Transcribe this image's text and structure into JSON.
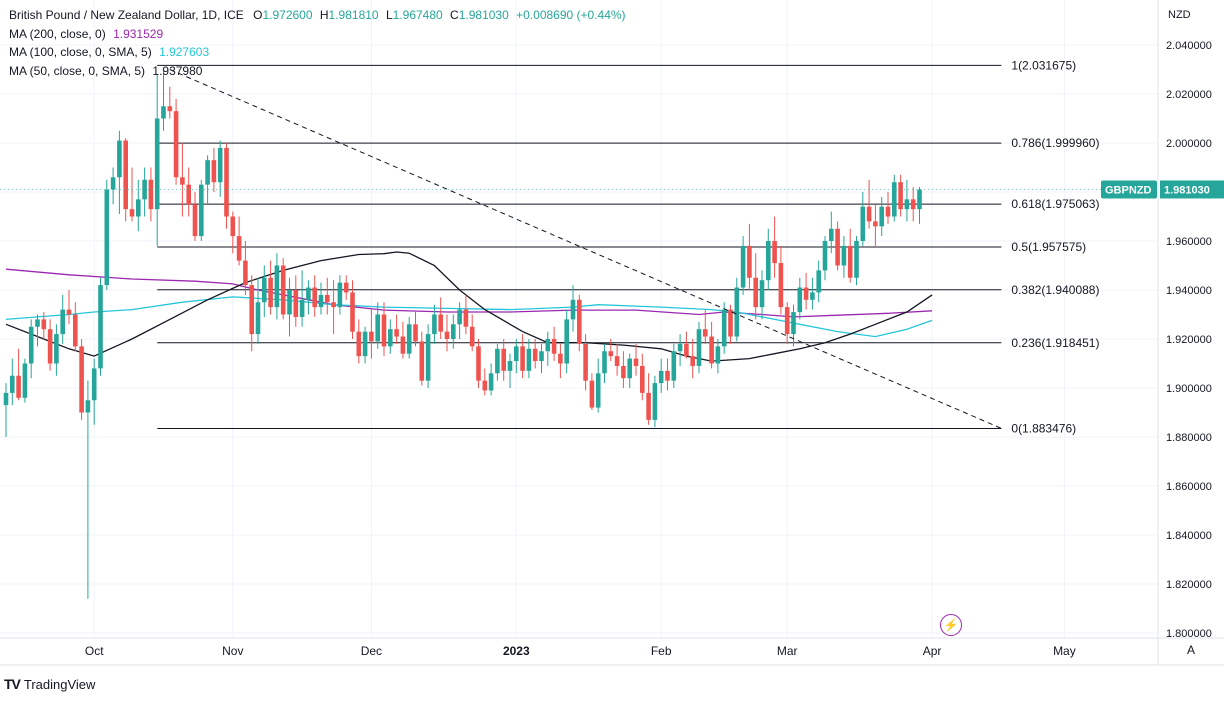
{
  "header": {
    "symbol_title": "British Pound / New Zealand Dollar, 1D, ICE",
    "ohlc": [
      {
        "label": "O",
        "value": "1.972600"
      },
      {
        "label": "H",
        "value": "1.981810"
      },
      {
        "label": "L",
        "value": "1.967480"
      },
      {
        "label": "C",
        "value": "1.981030"
      }
    ],
    "change": "+0.008690 (+0.44%)",
    "indicators": [
      {
        "label": "MA (200, close, 0)",
        "value": "1.931529",
        "color": "#9c27b0"
      },
      {
        "label": "MA (100, close, 0, SMA, 5)",
        "value": "1.927603",
        "color": "#26c6da"
      },
      {
        "label": "MA (50, close, 0, SMA, 5)",
        "value": "1.937980",
        "color": "#131722"
      }
    ]
  },
  "currency_label": "NZD",
  "price_tag": {
    "symbol": "GBPNZD",
    "value": "1.981030",
    "color": "#26a69a"
  },
  "brand": {
    "logo": "TV",
    "name": "TradingView"
  },
  "auto_label": "A",
  "chart_data": {
    "type": "candlestick",
    "y_axis": {
      "min": 1.795,
      "max": 2.05,
      "ticks": [
        "2.040000",
        "2.020000",
        "2.000000",
        "1.980000",
        "1.960000",
        "1.940000",
        "1.920000",
        "1.900000",
        "1.880000",
        "1.860000",
        "1.840000",
        "1.820000",
        "1.800000"
      ]
    },
    "x_axis": {
      "labels": [
        {
          "text": "Oct",
          "bar": 14,
          "bold": false
        },
        {
          "text": "Nov",
          "bar": 36,
          "bold": false
        },
        {
          "text": "Dec",
          "bar": 58,
          "bold": false
        },
        {
          "text": "2023",
          "bar": 81,
          "bold": true
        },
        {
          "text": "Feb",
          "bar": 104,
          "bold": false
        },
        {
          "text": "Mar",
          "bar": 124,
          "bold": false
        },
        {
          "text": "Apr",
          "bar": 147,
          "bold": false
        },
        {
          "text": "May",
          "bar": 168,
          "bold": false
        }
      ]
    },
    "colors": {
      "up": "#26a69a",
      "down": "#ef5350"
    },
    "candles": [
      [
        1.893,
        1.902,
        1.88,
        1.898
      ],
      [
        1.898,
        1.912,
        1.893,
        1.905
      ],
      [
        1.905,
        1.916,
        1.895,
        1.896
      ],
      [
        1.896,
        1.912,
        1.894,
        1.91
      ],
      [
        1.91,
        1.928,
        1.904,
        1.925
      ],
      [
        1.925,
        1.93,
        1.917,
        1.928
      ],
      [
        1.928,
        1.931,
        1.92,
        1.924
      ],
      [
        1.924,
        1.928,
        1.907,
        1.91
      ],
      [
        1.91,
        1.926,
        1.905,
        1.922
      ],
      [
        1.922,
        1.938,
        1.918,
        1.932
      ],
      [
        1.932,
        1.94,
        1.926,
        1.93
      ],
      [
        1.93,
        1.935,
        1.915,
        1.917
      ],
      [
        1.917,
        1.92,
        1.887,
        1.89
      ],
      [
        1.89,
        1.903,
        1.814,
        1.895
      ],
      [
        1.895,
        1.912,
        1.885,
        1.908
      ],
      [
        1.908,
        1.945,
        1.905,
        1.942
      ],
      [
        1.942,
        1.985,
        1.94,
        1.981
      ],
      [
        1.981,
        1.99,
        1.975,
        1.986
      ],
      [
        1.986,
        2.005,
        1.971,
        2.001
      ],
      [
        2.001,
        2.002,
        1.968,
        1.973
      ],
      [
        1.973,
        1.99,
        1.968,
        1.97
      ],
      [
        1.97,
        1.985,
        1.964,
        1.977
      ],
      [
        1.977,
        1.99,
        1.97,
        1.985
      ],
      [
        1.985,
        1.99,
        1.968,
        1.973
      ],
      [
        1.973,
        2.028,
        1.958,
        2.01
      ],
      [
        2.01,
        2.03,
        2.005,
        2.015
      ],
      [
        2.015,
        2.023,
        2.01,
        2.013
      ],
      [
        2.013,
        2.018,
        1.983,
        1.986
      ],
      [
        1.986,
        2.0,
        1.97,
        1.983
      ],
      [
        1.983,
        1.99,
        1.97,
        1.975
      ],
      [
        1.975,
        1.98,
        1.96,
        1.962
      ],
      [
        1.962,
        1.985,
        1.96,
        1.983
      ],
      [
        1.983,
        1.995,
        1.975,
        1.993
      ],
      [
        1.993,
        1.998,
        1.98,
        1.984
      ],
      [
        1.984,
        2.001,
        1.978,
        1.998
      ],
      [
        1.998,
        2.0,
        1.965,
        1.97
      ],
      [
        1.97,
        1.972,
        1.955,
        1.962
      ],
      [
        1.962,
        1.97,
        1.95,
        1.952
      ],
      [
        1.952,
        1.96,
        1.938,
        1.942
      ],
      [
        1.942,
        1.946,
        1.915,
        1.922
      ],
      [
        1.922,
        1.945,
        1.918,
        1.935
      ],
      [
        1.935,
        1.95,
        1.929,
        1.945
      ],
      [
        1.945,
        1.952,
        1.93,
        1.933
      ],
      [
        1.933,
        1.955,
        1.928,
        1.95
      ],
      [
        1.95,
        1.953,
        1.928,
        1.93
      ],
      [
        1.93,
        1.945,
        1.921,
        1.94
      ],
      [
        1.94,
        1.946,
        1.925,
        1.929
      ],
      [
        1.929,
        1.948,
        1.925,
        1.936
      ],
      [
        1.936,
        1.944,
        1.93,
        1.941
      ],
      [
        1.941,
        1.946,
        1.929,
        1.933
      ],
      [
        1.933,
        1.943,
        1.93,
        1.938
      ],
      [
        1.938,
        1.945,
        1.93,
        1.935
      ],
      [
        1.935,
        1.944,
        1.922,
        1.933
      ],
      [
        1.933,
        1.946,
        1.93,
        1.943
      ],
      [
        1.943,
        1.946,
        1.936,
        1.939
      ],
      [
        1.939,
        1.944,
        1.92,
        1.923
      ],
      [
        1.923,
        1.928,
        1.91,
        1.913
      ],
      [
        1.913,
        1.925,
        1.91,
        1.923
      ],
      [
        1.923,
        1.932,
        1.912,
        1.919
      ],
      [
        1.919,
        1.935,
        1.916,
        1.93
      ],
      [
        1.93,
        1.935,
        1.913,
        1.917
      ],
      [
        1.917,
        1.928,
        1.914,
        1.924
      ],
      [
        1.924,
        1.93,
        1.918,
        1.921
      ],
      [
        1.921,
        1.927,
        1.912,
        1.914
      ],
      [
        1.914,
        1.929,
        1.912,
        1.926
      ],
      [
        1.926,
        1.931,
        1.917,
        1.919
      ],
      [
        1.919,
        1.923,
        1.901,
        1.903
      ],
      [
        1.903,
        1.926,
        1.9,
        1.922
      ],
      [
        1.922,
        1.934,
        1.918,
        1.93
      ],
      [
        1.93,
        1.937,
        1.92,
        1.923
      ],
      [
        1.923,
        1.93,
        1.915,
        1.92
      ],
      [
        1.92,
        1.93,
        1.916,
        1.926
      ],
      [
        1.926,
        1.935,
        1.92,
        1.932
      ],
      [
        1.932,
        1.938,
        1.922,
        1.925
      ],
      [
        1.925,
        1.93,
        1.915,
        1.917
      ],
      [
        1.917,
        1.92,
        1.9,
        1.903
      ],
      [
        1.903,
        1.908,
        1.897,
        1.899
      ],
      [
        1.899,
        1.91,
        1.897,
        1.906
      ],
      [
        1.906,
        1.918,
        1.903,
        1.916
      ],
      [
        1.916,
        1.92,
        1.903,
        1.907
      ],
      [
        1.907,
        1.914,
        1.9,
        1.911
      ],
      [
        1.911,
        1.92,
        1.906,
        1.917
      ],
      [
        1.917,
        1.922,
        1.904,
        1.907
      ],
      [
        1.907,
        1.92,
        1.904,
        1.916
      ],
      [
        1.916,
        1.92,
        1.908,
        1.911
      ],
      [
        1.911,
        1.918,
        1.906,
        1.915
      ],
      [
        1.915,
        1.923,
        1.909,
        1.92
      ],
      [
        1.92,
        1.925,
        1.911,
        1.914
      ],
      [
        1.914,
        1.918,
        1.904,
        1.91
      ],
      [
        1.91,
        1.932,
        1.906,
        1.928
      ],
      [
        1.928,
        1.942,
        1.923,
        1.936
      ],
      [
        1.936,
        1.938,
        1.915,
        1.918
      ],
      [
        1.918,
        1.922,
        1.899,
        1.903
      ],
      [
        1.903,
        1.906,
        1.891,
        1.892
      ],
      [
        1.892,
        1.912,
        1.89,
        1.906
      ],
      [
        1.906,
        1.918,
        1.902,
        1.915
      ],
      [
        1.915,
        1.92,
        1.911,
        1.913
      ],
      [
        1.913,
        1.918,
        1.905,
        1.909
      ],
      [
        1.909,
        1.915,
        1.9,
        1.904
      ],
      [
        1.904,
        1.914,
        1.9,
        1.912
      ],
      [
        1.912,
        1.918,
        1.905,
        1.909
      ],
      [
        1.909,
        1.914,
        1.895,
        1.898
      ],
      [
        1.898,
        1.906,
        1.885,
        1.887
      ],
      [
        1.887,
        1.905,
        1.884,
        1.902
      ],
      [
        1.902,
        1.912,
        1.898,
        1.907
      ],
      [
        1.907,
        1.912,
        1.899,
        1.903
      ],
      [
        1.903,
        1.918,
        1.9,
        1.915
      ],
      [
        1.915,
        1.922,
        1.909,
        1.918
      ],
      [
        1.918,
        1.923,
        1.912,
        1.913
      ],
      [
        1.913,
        1.92,
        1.904,
        1.909
      ],
      [
        1.909,
        1.927,
        1.906,
        1.924
      ],
      [
        1.924,
        1.932,
        1.918,
        1.921
      ],
      [
        1.921,
        1.927,
        1.908,
        1.91
      ],
      [
        1.91,
        1.92,
        1.906,
        1.917
      ],
      [
        1.917,
        1.935,
        1.914,
        1.932
      ],
      [
        1.932,
        1.934,
        1.918,
        1.921
      ],
      [
        1.921,
        1.945,
        1.919,
        1.941
      ],
      [
        1.941,
        1.962,
        1.938,
        1.958
      ],
      [
        1.958,
        1.967,
        1.94,
        1.945
      ],
      [
        1.945,
        1.955,
        1.928,
        1.933
      ],
      [
        1.933,
        1.948,
        1.928,
        1.944
      ],
      [
        1.944,
        1.965,
        1.94,
        1.96
      ],
      [
        1.96,
        1.97,
        1.945,
        1.951
      ],
      [
        1.951,
        1.958,
        1.93,
        1.933
      ],
      [
        1.933,
        1.935,
        1.918,
        1.922
      ],
      [
        1.922,
        1.934,
        1.917,
        1.931
      ],
      [
        1.931,
        1.945,
        1.928,
        1.941
      ],
      [
        1.941,
        1.947,
        1.932,
        1.936
      ],
      [
        1.936,
        1.945,
        1.932,
        1.939
      ],
      [
        1.939,
        1.952,
        1.935,
        1.948
      ],
      [
        1.948,
        1.962,
        1.944,
        1.96
      ],
      [
        1.96,
        1.972,
        1.955,
        1.965
      ],
      [
        1.965,
        1.968,
        1.948,
        1.95
      ],
      [
        1.95,
        1.962,
        1.945,
        1.958
      ],
      [
        1.958,
        1.965,
        1.943,
        1.945
      ],
      [
        1.945,
        1.962,
        1.942,
        1.96
      ],
      [
        1.96,
        1.98,
        1.958,
        1.974
      ],
      [
        1.974,
        1.985,
        1.965,
        1.968
      ],
      [
        1.968,
        1.975,
        1.958,
        1.966
      ],
      [
        1.966,
        1.978,
        1.962,
        1.974
      ],
      [
        1.974,
        1.98,
        1.967,
        1.97
      ],
      [
        1.97,
        1.987,
        1.968,
        1.984
      ],
      [
        1.984,
        1.987,
        1.97,
        1.973
      ],
      [
        1.973,
        1.985,
        1.968,
        1.977
      ],
      [
        1.977,
        1.982,
        1.968,
        1.973
      ],
      [
        1.973,
        1.982,
        1.967,
        1.981
      ]
    ],
    "moving_averages": [
      {
        "name": "MA 200",
        "color": "#9c27b0",
        "width": 1.3,
        "points": [
          [
            0,
            1.9485
          ],
          [
            10,
            1.9462
          ],
          [
            20,
            1.9445
          ],
          [
            30,
            1.9436
          ],
          [
            36,
            1.9425
          ],
          [
            40,
            1.94
          ],
          [
            46,
            1.937
          ],
          [
            52,
            1.934
          ],
          [
            60,
            1.9318
          ],
          [
            70,
            1.931
          ],
          [
            80,
            1.931
          ],
          [
            90,
            1.9318
          ],
          [
            100,
            1.9318
          ],
          [
            110,
            1.93
          ],
          [
            114,
            1.931
          ],
          [
            120,
            1.93
          ],
          [
            125,
            1.929
          ],
          [
            130,
            1.9295
          ],
          [
            140,
            1.9305
          ],
          [
            147,
            1.9315
          ]
        ]
      },
      {
        "name": "MA 100",
        "color": "#26c6da",
        "width": 1.3,
        "points": [
          [
            0,
            1.928
          ],
          [
            5,
            1.929
          ],
          [
            10,
            1.93
          ],
          [
            14,
            1.931
          ],
          [
            20,
            1.932
          ],
          [
            28,
            1.935
          ],
          [
            36,
            1.9372
          ],
          [
            44,
            1.936
          ],
          [
            52,
            1.934
          ],
          [
            60,
            1.933
          ],
          [
            70,
            1.9325
          ],
          [
            80,
            1.932
          ],
          [
            90,
            1.933
          ],
          [
            94,
            1.934
          ],
          [
            104,
            1.933
          ],
          [
            112,
            1.932
          ],
          [
            116,
            1.931
          ],
          [
            120,
            1.929
          ],
          [
            126,
            1.926
          ],
          [
            132,
            1.923
          ],
          [
            138,
            1.921
          ],
          [
            143,
            1.924
          ],
          [
            147,
            1.9276
          ]
        ]
      },
      {
        "name": "MA 50",
        "color": "#131722",
        "width": 1.3,
        "points": [
          [
            0,
            1.926
          ],
          [
            6,
            1.92
          ],
          [
            10,
            1.916
          ],
          [
            14,
            1.913
          ],
          [
            20,
            1.92
          ],
          [
            26,
            1.928
          ],
          [
            32,
            1.936
          ],
          [
            38,
            1.943
          ],
          [
            44,
            1.948
          ],
          [
            50,
            1.952
          ],
          [
            56,
            1.9545
          ],
          [
            60,
            1.9548
          ],
          [
            62,
            1.9555
          ],
          [
            64,
            1.955
          ],
          [
            68,
            1.95
          ],
          [
            72,
            1.94
          ],
          [
            76,
            1.932
          ],
          [
            82,
            1.923
          ],
          [
            86,
            1.9185
          ],
          [
            92,
            1.9185
          ],
          [
            98,
            1.9175
          ],
          [
            104,
            1.916
          ],
          [
            108,
            1.913
          ],
          [
            112,
            1.911
          ],
          [
            118,
            1.912
          ],
          [
            122,
            1.914
          ],
          [
            126,
            1.916
          ],
          [
            130,
            1.9185
          ],
          [
            134,
            1.922
          ],
          [
            138,
            1.926
          ],
          [
            143,
            1.931
          ],
          [
            147,
            1.938
          ]
        ]
      }
    ],
    "trendline": {
      "from": [
        26,
        2.03
      ],
      "to": [
        158,
        1.8835
      ],
      "dashed": true
    },
    "fibonacci": {
      "start_bar": 24,
      "end_bar": 158,
      "levels": [
        {
          "ratio": "1",
          "price": 2.031675,
          "label": "1(2.031675)"
        },
        {
          "ratio": "0.786",
          "price": 1.99996,
          "label": "0.786(1.999960)"
        },
        {
          "ratio": "0.618",
          "price": 1.975063,
          "label": "0.618(1.975063)"
        },
        {
          "ratio": "0.5",
          "price": 1.957575,
          "label": "0.5(1.957575)"
        },
        {
          "ratio": "0.382",
          "price": 1.940088,
          "label": "0.382(1.940088)"
        },
        {
          "ratio": "0.236",
          "price": 1.918451,
          "label": "0.236(1.918451)"
        },
        {
          "ratio": "0",
          "price": 1.883476,
          "label": "0(1.883476)"
        }
      ]
    }
  }
}
